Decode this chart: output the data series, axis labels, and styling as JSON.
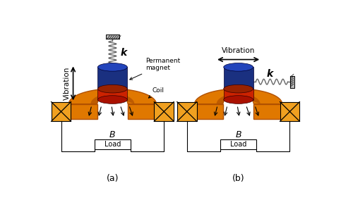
{
  "bg_color": "#ffffff",
  "label_a": "(a)",
  "label_b": "(b)",
  "text_vibration_a": "Vibration",
  "text_vibration_b": "Vibration",
  "text_k_a": "k",
  "text_k_b": "k",
  "text_permanent_magnet": "Permanent\nmagnet",
  "text_coil": "Coil",
  "text_B": "B",
  "text_load": "Load",
  "blue_top": "#2244bb",
  "blue_mid": "#1a3080",
  "blue_dark": "#0d1f5c",
  "red_color": "#cc2200",
  "red_dark": "#8b1500",
  "orange_light": "#f0a020",
  "orange_color": "#e07800",
  "orange_dark": "#b05000",
  "spring_color": "#666666",
  "wall_color": "#bbbbbb"
}
